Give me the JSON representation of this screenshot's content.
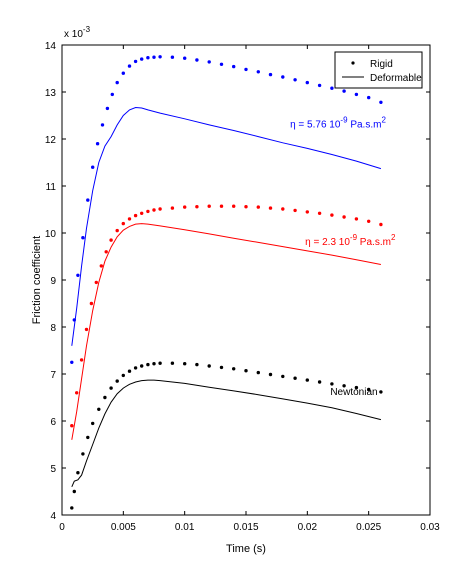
{
  "chart_data": {
    "type": "scatter",
    "title": "",
    "xlabel": "Time (s)",
    "ylabel": "Friction coefficient",
    "xlim": [
      0,
      0.03
    ],
    "ylim": [
      4,
      14
    ],
    "y_multiplier_label": "x 10",
    "y_multiplier_exp": "-3",
    "xticks": [
      0,
      0.005,
      0.01,
      0.015,
      0.02,
      0.025,
      0.03
    ],
    "xtick_labels": [
      "0",
      "0.005",
      "0.01",
      "0.015",
      "0.02",
      "0.025",
      "0.03"
    ],
    "yticks": [
      4,
      5,
      6,
      7,
      8,
      9,
      10,
      11,
      12,
      13,
      14
    ],
    "ytick_labels": [
      "4",
      "5",
      "6",
      "7",
      "8",
      "9",
      "10",
      "11",
      "12",
      "13",
      "14"
    ],
    "grid": false,
    "legend": {
      "placement": "top-right",
      "entries": [
        {
          "label": "Rigid",
          "style": "dots",
          "color": "#000000"
        },
        {
          "label": "Deformable",
          "style": "line",
          "color": "#000000"
        }
      ]
    },
    "annotations": [
      {
        "id": "eta-high",
        "prefix": "η = 5.76 10",
        "sup": "-9",
        "suffix": " Pa.s.m",
        "sup2": "2",
        "color": "#0000ff",
        "x": 0.0225,
        "y": 12.25
      },
      {
        "id": "eta-low",
        "prefix": "η = 2.3 10",
        "sup": "-9",
        "suffix": " Pa.s.m",
        "sup2": "2",
        "color": "#ff0000",
        "x": 0.0235,
        "y": 9.75
      },
      {
        "id": "newtonian",
        "text": "Newtonian",
        "color": "#000000",
        "x": 0.0238,
        "y": 6.55
      }
    ],
    "series": [
      {
        "name": "Rigid",
        "group": "η = 5.76 10-9 Pa.s.m2",
        "style": "dots",
        "color": "#0000ff",
        "points": [
          [
            0.0008,
            7.25
          ],
          [
            0.001,
            8.15
          ],
          [
            0.0013,
            9.1
          ],
          [
            0.0017,
            9.9
          ],
          [
            0.0021,
            10.7
          ],
          [
            0.0025,
            11.4
          ],
          [
            0.0029,
            11.9
          ],
          [
            0.0033,
            12.3
          ],
          [
            0.0037,
            12.65
          ],
          [
            0.0041,
            12.95
          ],
          [
            0.0045,
            13.2
          ],
          [
            0.005,
            13.4
          ],
          [
            0.0055,
            13.55
          ],
          [
            0.006,
            13.65
          ],
          [
            0.0065,
            13.7
          ],
          [
            0.007,
            13.73
          ],
          [
            0.0075,
            13.74
          ],
          [
            0.008,
            13.75
          ],
          [
            0.009,
            13.74
          ],
          [
            0.01,
            13.72
          ],
          [
            0.011,
            13.68
          ],
          [
            0.012,
            13.64
          ],
          [
            0.013,
            13.59
          ],
          [
            0.014,
            13.54
          ],
          [
            0.015,
            13.48
          ],
          [
            0.016,
            13.43
          ],
          [
            0.017,
            13.37
          ],
          [
            0.018,
            13.32
          ],
          [
            0.019,
            13.26
          ],
          [
            0.02,
            13.2
          ],
          [
            0.021,
            13.14
          ],
          [
            0.022,
            13.08
          ],
          [
            0.023,
            13.02
          ],
          [
            0.024,
            12.95
          ],
          [
            0.025,
            12.88
          ],
          [
            0.026,
            12.78
          ]
        ]
      },
      {
        "name": "Deformable",
        "group": "η = 5.76 10-9 Pa.s.m2",
        "style": "line",
        "color": "#0000ff",
        "points": [
          [
            0.0008,
            7.6
          ],
          [
            0.0012,
            8.4
          ],
          [
            0.0016,
            9.3
          ],
          [
            0.002,
            10.1
          ],
          [
            0.0025,
            10.9
          ],
          [
            0.003,
            11.5
          ],
          [
            0.0035,
            11.85
          ],
          [
            0.004,
            12.05
          ],
          [
            0.0045,
            12.3
          ],
          [
            0.005,
            12.5
          ],
          [
            0.0055,
            12.62
          ],
          [
            0.006,
            12.67
          ],
          [
            0.0065,
            12.66
          ],
          [
            0.007,
            12.62
          ],
          [
            0.008,
            12.55
          ],
          [
            0.01,
            12.43
          ],
          [
            0.012,
            12.3
          ],
          [
            0.014,
            12.18
          ],
          [
            0.016,
            12.05
          ],
          [
            0.018,
            11.92
          ],
          [
            0.02,
            11.8
          ],
          [
            0.022,
            11.67
          ],
          [
            0.024,
            11.53
          ],
          [
            0.026,
            11.37
          ]
        ]
      },
      {
        "name": "Rigid",
        "group": "η = 2.3 10-9 Pa.s.m2",
        "style": "dots",
        "color": "#ff0000",
        "points": [
          [
            0.0008,
            5.9
          ],
          [
            0.0012,
            6.6
          ],
          [
            0.0016,
            7.3
          ],
          [
            0.002,
            7.95
          ],
          [
            0.0024,
            8.5
          ],
          [
            0.0028,
            8.95
          ],
          [
            0.0032,
            9.3
          ],
          [
            0.0036,
            9.6
          ],
          [
            0.004,
            9.85
          ],
          [
            0.0045,
            10.05
          ],
          [
            0.005,
            10.2
          ],
          [
            0.0055,
            10.3
          ],
          [
            0.006,
            10.37
          ],
          [
            0.0065,
            10.42
          ],
          [
            0.007,
            10.46
          ],
          [
            0.0075,
            10.49
          ],
          [
            0.008,
            10.51
          ],
          [
            0.009,
            10.53
          ],
          [
            0.01,
            10.55
          ],
          [
            0.011,
            10.56
          ],
          [
            0.012,
            10.57
          ],
          [
            0.013,
            10.57
          ],
          [
            0.014,
            10.57
          ],
          [
            0.015,
            10.56
          ],
          [
            0.016,
            10.55
          ],
          [
            0.017,
            10.53
          ],
          [
            0.018,
            10.51
          ],
          [
            0.019,
            10.48
          ],
          [
            0.02,
            10.45
          ],
          [
            0.021,
            10.42
          ],
          [
            0.022,
            10.38
          ],
          [
            0.023,
            10.34
          ],
          [
            0.024,
            10.3
          ],
          [
            0.025,
            10.25
          ],
          [
            0.026,
            10.18
          ]
        ]
      },
      {
        "name": "Deformable",
        "group": "η = 2.3 10-9 Pa.s.m2",
        "style": "line",
        "color": "#ff0000",
        "points": [
          [
            0.0008,
            5.6
          ],
          [
            0.0012,
            6.2
          ],
          [
            0.0016,
            6.9
          ],
          [
            0.002,
            7.6
          ],
          [
            0.0025,
            8.35
          ],
          [
            0.003,
            8.95
          ],
          [
            0.0035,
            9.4
          ],
          [
            0.004,
            9.7
          ],
          [
            0.0045,
            9.92
          ],
          [
            0.005,
            10.06
          ],
          [
            0.0055,
            10.14
          ],
          [
            0.006,
            10.19
          ],
          [
            0.0065,
            10.2
          ],
          [
            0.007,
            10.19
          ],
          [
            0.008,
            10.15
          ],
          [
            0.01,
            10.07
          ],
          [
            0.012,
            9.98
          ],
          [
            0.014,
            9.89
          ],
          [
            0.016,
            9.8
          ],
          [
            0.018,
            9.71
          ],
          [
            0.02,
            9.62
          ],
          [
            0.022,
            9.53
          ],
          [
            0.024,
            9.43
          ],
          [
            0.026,
            9.33
          ]
        ]
      },
      {
        "name": "Rigid",
        "group": "Newtonian",
        "style": "dots",
        "color": "#000000",
        "points": [
          [
            0.0008,
            4.15
          ],
          [
            0.001,
            4.5
          ],
          [
            0.0013,
            4.9
          ],
          [
            0.0017,
            5.3
          ],
          [
            0.0021,
            5.65
          ],
          [
            0.0025,
            5.95
          ],
          [
            0.003,
            6.25
          ],
          [
            0.0035,
            6.5
          ],
          [
            0.004,
            6.7
          ],
          [
            0.0045,
            6.85
          ],
          [
            0.005,
            6.97
          ],
          [
            0.0055,
            7.06
          ],
          [
            0.006,
            7.13
          ],
          [
            0.0065,
            7.17
          ],
          [
            0.007,
            7.2
          ],
          [
            0.0075,
            7.22
          ],
          [
            0.008,
            7.23
          ],
          [
            0.009,
            7.23
          ],
          [
            0.01,
            7.22
          ],
          [
            0.011,
            7.2
          ],
          [
            0.012,
            7.17
          ],
          [
            0.013,
            7.14
          ],
          [
            0.014,
            7.11
          ],
          [
            0.015,
            7.07
          ],
          [
            0.016,
            7.03
          ],
          [
            0.017,
            6.99
          ],
          [
            0.018,
            6.95
          ],
          [
            0.019,
            6.91
          ],
          [
            0.02,
            6.87
          ],
          [
            0.021,
            6.83
          ],
          [
            0.022,
            6.79
          ],
          [
            0.023,
            6.75
          ],
          [
            0.024,
            6.71
          ],
          [
            0.025,
            6.67
          ],
          [
            0.026,
            6.62
          ]
        ]
      },
      {
        "name": "Deformable",
        "group": "Newtonian",
        "style": "line",
        "color": "#000000",
        "points": [
          [
            0.0008,
            4.6
          ],
          [
            0.001,
            4.72
          ],
          [
            0.0013,
            4.75
          ],
          [
            0.0016,
            4.85
          ],
          [
            0.002,
            5.15
          ],
          [
            0.0025,
            5.5
          ],
          [
            0.003,
            5.85
          ],
          [
            0.0035,
            6.15
          ],
          [
            0.004,
            6.4
          ],
          [
            0.0045,
            6.58
          ],
          [
            0.005,
            6.7
          ],
          [
            0.0055,
            6.78
          ],
          [
            0.006,
            6.83
          ],
          [
            0.0065,
            6.86
          ],
          [
            0.007,
            6.87
          ],
          [
            0.0075,
            6.87
          ],
          [
            0.008,
            6.86
          ],
          [
            0.01,
            6.8
          ],
          [
            0.012,
            6.72
          ],
          [
            0.014,
            6.64
          ],
          [
            0.016,
            6.56
          ],
          [
            0.018,
            6.47
          ],
          [
            0.02,
            6.38
          ],
          [
            0.022,
            6.28
          ],
          [
            0.024,
            6.16
          ],
          [
            0.026,
            6.03
          ]
        ]
      }
    ]
  }
}
